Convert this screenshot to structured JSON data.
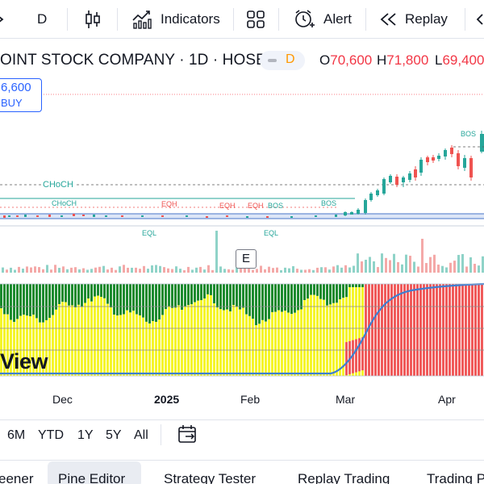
{
  "toolbar": {
    "interval": "D",
    "indicators_label": "Indicators",
    "alert_label": "Alert",
    "replay_label": "Replay"
  },
  "symbol": {
    "title": "OINT STOCK COMPANY · 1D · HOSE",
    "badge": "D",
    "open_key": "O",
    "open_val": "70,600",
    "high_key": "H",
    "high_val": "71,800",
    "low_key": "L",
    "low_val": "69,400"
  },
  "price_box": {
    "price": "6,600",
    "action": "BUY"
  },
  "chart": {
    "annotations": [
      "CHoCH",
      "CHoCH",
      "EQH",
      "EQH",
      "EQH",
      "BOS",
      "BOS",
      "BOS",
      "EQL",
      "EQL"
    ],
    "earnings_marker": "E",
    "watermark": "View",
    "colors": {
      "up": "#26a69a",
      "down": "#ef5350",
      "green_zone": "#1b8a2e",
      "yellow_zone": "#f5f52a",
      "red_zone": "#f05a5a",
      "line": "#3d7fd1"
    }
  },
  "time_axis": [
    "Dec",
    "2025",
    "Feb",
    "Mar",
    "Apr"
  ],
  "ranges": [
    "6M",
    "YTD",
    "1Y",
    "5Y",
    "All"
  ],
  "bottom_tabs": [
    "eener",
    "Pine Editor",
    "Strategy Tester",
    "Replay Trading",
    "Trading P"
  ]
}
